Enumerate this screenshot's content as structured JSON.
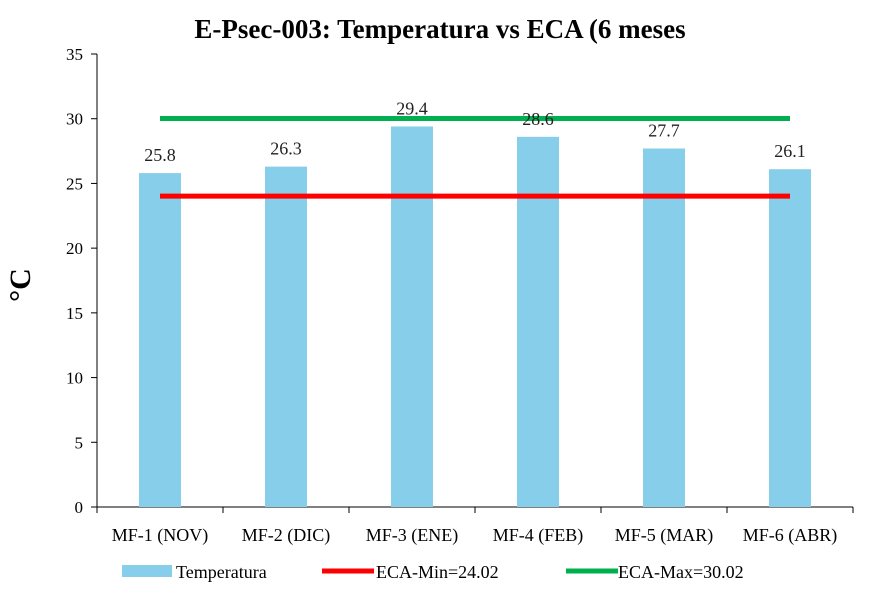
{
  "chart_data": {
    "type": "bar",
    "title": "E-Psec-003: Temperatura  vs ECA (6 meses",
    "ylabel": "°C",
    "xlabel": "",
    "ylim": [
      0,
      35
    ],
    "yticks": [
      0,
      5,
      10,
      15,
      20,
      25,
      30,
      35
    ],
    "categories": [
      "MF-1 (NOV)",
      "MF-2 (DIC)",
      "MF-3 (ENE)",
      "MF-4 (FEB)",
      "MF-5 (MAR)",
      "MF-6 (ABR)"
    ],
    "series": [
      {
        "name": "Temperatura",
        "type": "bar",
        "color": "#87CEEB",
        "values": [
          25.8,
          26.3,
          29.4,
          28.6,
          27.7,
          26.1
        ],
        "data_labels": [
          "25.8",
          "26.3",
          "29.4",
          "28.6",
          "27.7",
          "26.1"
        ]
      },
      {
        "name": "ECA-Min=24.02",
        "type": "line",
        "color": "#FF0000",
        "values": [
          24.02,
          24.02,
          24.02,
          24.02,
          24.02,
          24.02
        ]
      },
      {
        "name": "ECA-Max=30.02",
        "type": "line",
        "color": "#00B050",
        "values": [
          30.02,
          30.02,
          30.02,
          30.02,
          30.02,
          30.02
        ]
      }
    ],
    "legend_position": "bottom",
    "grid": false
  }
}
